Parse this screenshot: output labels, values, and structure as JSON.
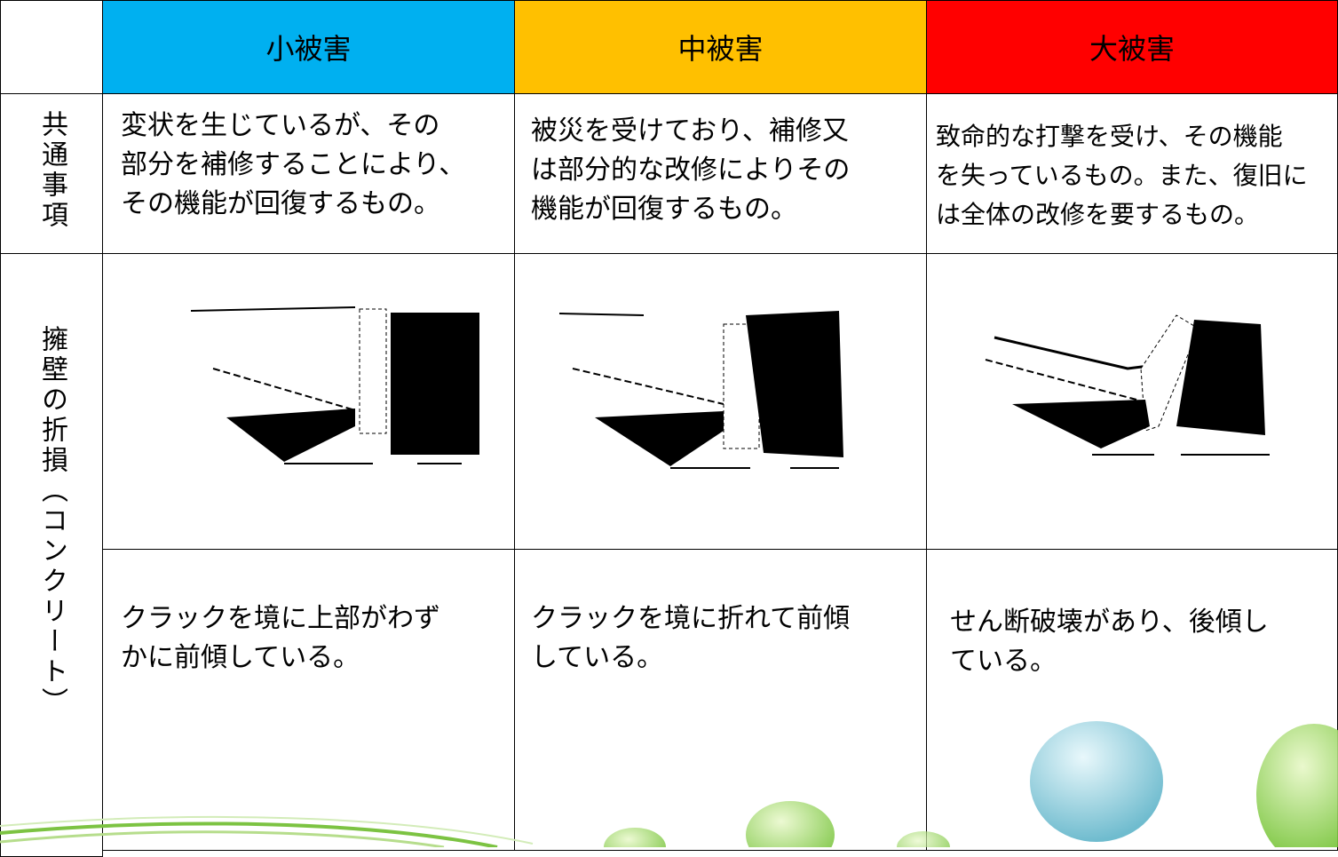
{
  "table": {
    "columns": [
      "小被害",
      "中被害",
      "大被害"
    ],
    "rows": [
      {
        "label": "共通事項",
        "cells": [
          [
            "変状を生じているが、その",
            "部分を補修することにより、",
            "その機能が回復するもの。"
          ],
          [
            "被災を受けており、補修又",
            "は部分的な改修によりその",
            "機能が回復するもの。"
          ],
          [
            "致命的な打撃を受け、その機能",
            "を失っているもの。また、復旧に",
            "は全体の改修を要するもの。"
          ]
        ]
      },
      {
        "label": "擁壁の折損（コンクリート）",
        "cells": [
          [
            "クラックを境に上部がわず",
            "かに前傾している。"
          ],
          [
            "クラックを境に折れて前傾",
            "している。"
          ],
          [
            "せん断破壊があり、後傾し",
            "ている。"
          ]
        ]
      }
    ]
  }
}
